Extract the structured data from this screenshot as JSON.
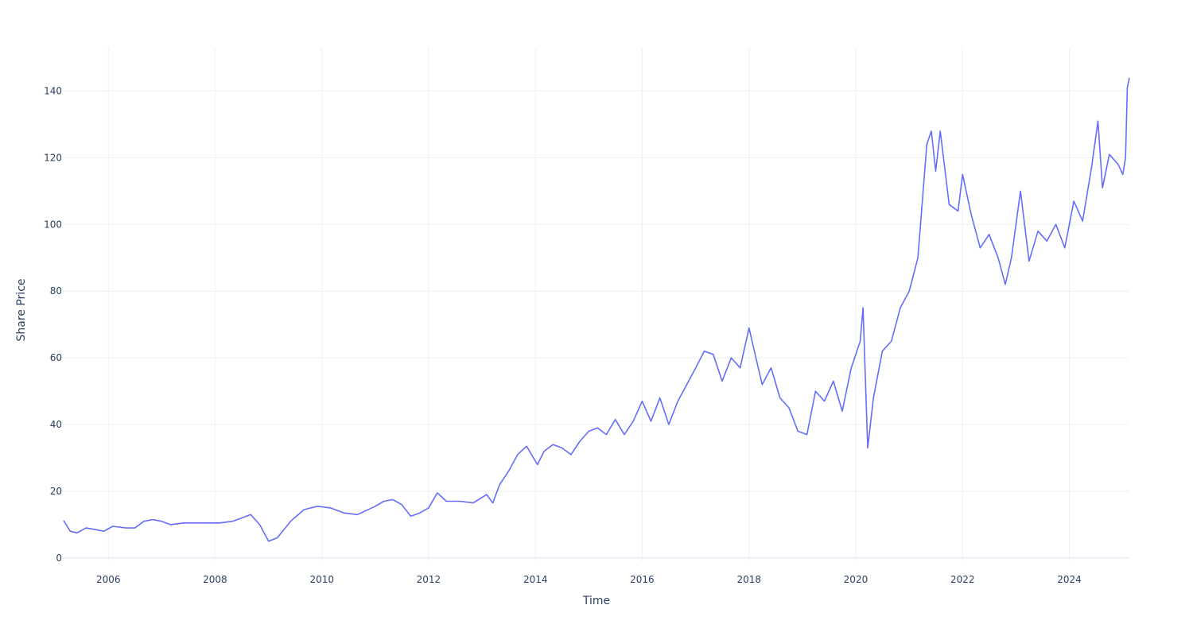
{
  "chart_data": {
    "type": "line",
    "title": "",
    "xlabel": "Time",
    "ylabel": "Share Price",
    "xlim": [
      "2005-03-01",
      "2025-02-15"
    ],
    "ylim": [
      -1,
      153
    ],
    "x_ticks": [
      "2006",
      "2008",
      "2010",
      "2012",
      "2014",
      "2016",
      "2018",
      "2020",
      "2022",
      "2024"
    ],
    "y_ticks": [
      "0",
      "20",
      "40",
      "60",
      "80",
      "100",
      "120",
      "140"
    ],
    "grid": true,
    "legend": "none",
    "colors": {
      "line": "#636efa",
      "grid": "#ebf0f8",
      "zeroline": "#ebf0f8",
      "text": "#2a3f5f"
    },
    "series": [
      {
        "name": "",
        "x": [
          "2005-03-01",
          "2005-04-15",
          "2005-06-01",
          "2005-08-01",
          "2005-10-01",
          "2005-12-01",
          "2006-02-01",
          "2006-05-01",
          "2006-07-01",
          "2006-09-01",
          "2006-11-01",
          "2007-01-01",
          "2007-03-01",
          "2007-06-01",
          "2007-09-01",
          "2007-12-01",
          "2008-02-01",
          "2008-05-01",
          "2008-07-01",
          "2008-09-01",
          "2008-11-01",
          "2009-01-01",
          "2009-03-01",
          "2009-06-01",
          "2009-09-01",
          "2009-12-01",
          "2010-03-01",
          "2010-06-01",
          "2010-09-01",
          "2011-01-01",
          "2011-03-01",
          "2011-05-01",
          "2011-07-01",
          "2011-09-01",
          "2011-11-01",
          "2012-01-01",
          "2012-03-01",
          "2012-05-01",
          "2012-08-01",
          "2012-11-01",
          "2013-02-01",
          "2013-03-15",
          "2013-05-01",
          "2013-07-01",
          "2013-09-01",
          "2013-11-01",
          "2014-01-15",
          "2014-03-01",
          "2014-05-01",
          "2014-07-01",
          "2014-09-01",
          "2014-11-01",
          "2015-01-01",
          "2015-03-01",
          "2015-05-01",
          "2015-07-01",
          "2015-09-01",
          "2015-11-01",
          "2016-01-01",
          "2016-03-01",
          "2016-05-01",
          "2016-07-01",
          "2016-09-01",
          "2016-11-01",
          "2017-01-01",
          "2017-03-01",
          "2017-05-01",
          "2017-07-01",
          "2017-09-01",
          "2017-11-01",
          "2018-01-01",
          "2018-02-01",
          "2018-04-01",
          "2018-06-01",
          "2018-08-01",
          "2018-10-01",
          "2018-12-01",
          "2019-02-01",
          "2019-04-01",
          "2019-06-01",
          "2019-08-01",
          "2019-10-01",
          "2019-12-01",
          "2020-02-01",
          "2020-02-20",
          "2020-03-23",
          "2020-05-01",
          "2020-07-01",
          "2020-09-01",
          "2020-11-01",
          "2021-01-01",
          "2021-03-01",
          "2021-05-01",
          "2021-06-01",
          "2021-07-01",
          "2021-08-01",
          "2021-10-01",
          "2021-12-01",
          "2022-01-01",
          "2022-03-01",
          "2022-05-01",
          "2022-07-01",
          "2022-09-01",
          "2022-10-20",
          "2022-12-01",
          "2023-02-01",
          "2023-04-01",
          "2023-06-01",
          "2023-08-01",
          "2023-10-01",
          "2023-12-01",
          "2024-02-01",
          "2024-04-01",
          "2024-06-01",
          "2024-07-15",
          "2024-08-15",
          "2024-10-01",
          "2024-12-01",
          "2025-01-01",
          "2025-01-20",
          "2025-02-01",
          "2025-02-15"
        ],
        "y": [
          11.2,
          8.0,
          7.5,
          9.0,
          8.5,
          8.0,
          9.5,
          9.0,
          9.0,
          11.0,
          11.5,
          11.0,
          10.0,
          10.5,
          10.5,
          10.5,
          10.5,
          11.0,
          12.0,
          13.0,
          10.0,
          5.0,
          6.0,
          11.0,
          14.5,
          15.5,
          15.0,
          13.5,
          13.0,
          15.5,
          17.0,
          17.5,
          16.0,
          12.5,
          13.5,
          15.0,
          19.5,
          17.0,
          17.0,
          16.5,
          19.0,
          16.5,
          22.0,
          26.0,
          31.0,
          33.5,
          28.0,
          32.0,
          34.0,
          33.0,
          31.0,
          35.0,
          38.0,
          39.0,
          37.0,
          41.5,
          37.0,
          41.0,
          47.0,
          41.0,
          48.0,
          40.0,
          47.0,
          52.0,
          57.0,
          62.0,
          61.0,
          53.0,
          60.0,
          57.0,
          69.0,
          63.0,
          52.0,
          57.0,
          48.0,
          45.0,
          38.0,
          37.0,
          50.0,
          47.0,
          53.0,
          44.0,
          57.0,
          65.0,
          75.0,
          33.0,
          48.0,
          62.0,
          65.0,
          75.0,
          80.0,
          90.0,
          124.0,
          128.0,
          116.0,
          128.0,
          106.0,
          104.0,
          115.0,
          103.0,
          93.0,
          97.0,
          90.0,
          82.0,
          90.0,
          110.0,
          89.0,
          98.0,
          95.0,
          100.0,
          93.0,
          107.0,
          101.0,
          117.0,
          131.0,
          111.0,
          121.0,
          118.0,
          115.0,
          120.0,
          141.0,
          144.0
        ]
      }
    ]
  }
}
